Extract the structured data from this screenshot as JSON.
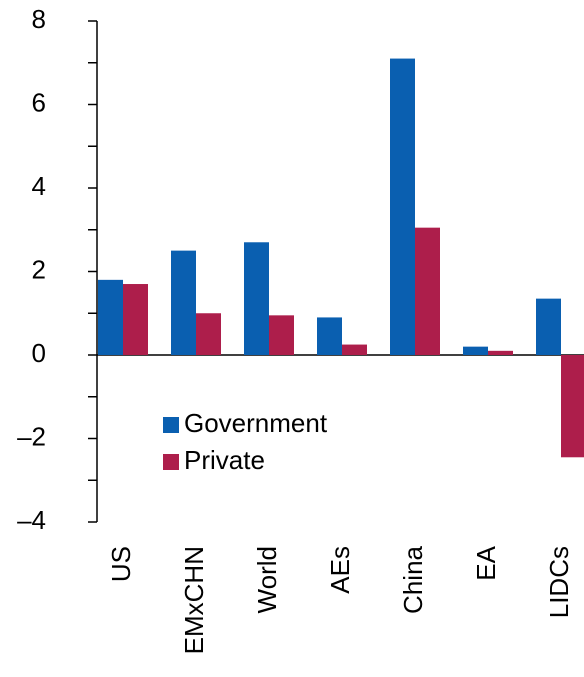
{
  "chart_data": {
    "type": "bar",
    "categories": [
      "US",
      "EMxCHN",
      "World",
      "AEs",
      "China",
      "EA",
      "LIDCs"
    ],
    "series": [
      {
        "name": "Government",
        "color": "#0a5fb0",
        "values": [
          1.8,
          2.5,
          2.7,
          0.9,
          7.1,
          0.2,
          1.35
        ]
      },
      {
        "name": "Private",
        "color": "#ad1e4b",
        "values": [
          1.7,
          1.0,
          0.95,
          0.25,
          3.05,
          0.1,
          -2.45
        ]
      }
    ],
    "ylim": [
      -4,
      8
    ],
    "yticks": [
      {
        "value": -4,
        "label": "–4"
      },
      {
        "value": -2,
        "label": "–2"
      },
      0,
      2,
      4,
      6,
      8
    ],
    "y_minor_ticks": [
      -3,
      -1,
      1,
      3,
      5,
      7
    ],
    "legend": "lower-left"
  }
}
